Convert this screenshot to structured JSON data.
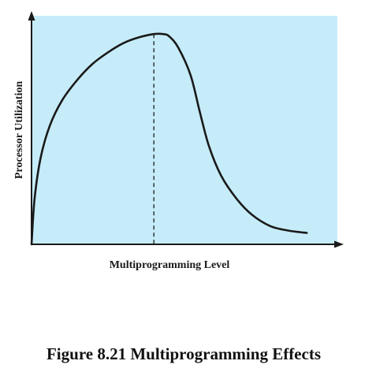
{
  "chart_data": {
    "type": "line",
    "title": "",
    "xlabel": "Multiprogramming Level",
    "ylabel": "Processor Utilization",
    "xlim": [
      0,
      100
    ],
    "ylim": [
      0,
      100
    ],
    "grid": false,
    "series": [
      {
        "x": [
          0,
          1,
          3,
          6,
          10,
          15,
          20,
          25,
          30,
          35,
          40,
          43,
          45,
          48,
          52,
          55,
          58,
          62,
          67,
          72,
          78,
          84,
          90
        ],
        "y": [
          0,
          20,
          38,
          52,
          63,
          72,
          79,
          84,
          88,
          90.5,
          92,
          92,
          91,
          86,
          74,
          58,
          43,
          30,
          20,
          13,
          8,
          6,
          5
        ]
      }
    ],
    "annotations": [
      {
        "type": "dashed-vertical",
        "x": 40
      }
    ]
  },
  "caption": "Figure 8.21 Multiprogramming Effects",
  "colors": {
    "plot_background": "#c6ecf9",
    "curve": "#1a1a1a",
    "axis": "#1a1a1a"
  }
}
